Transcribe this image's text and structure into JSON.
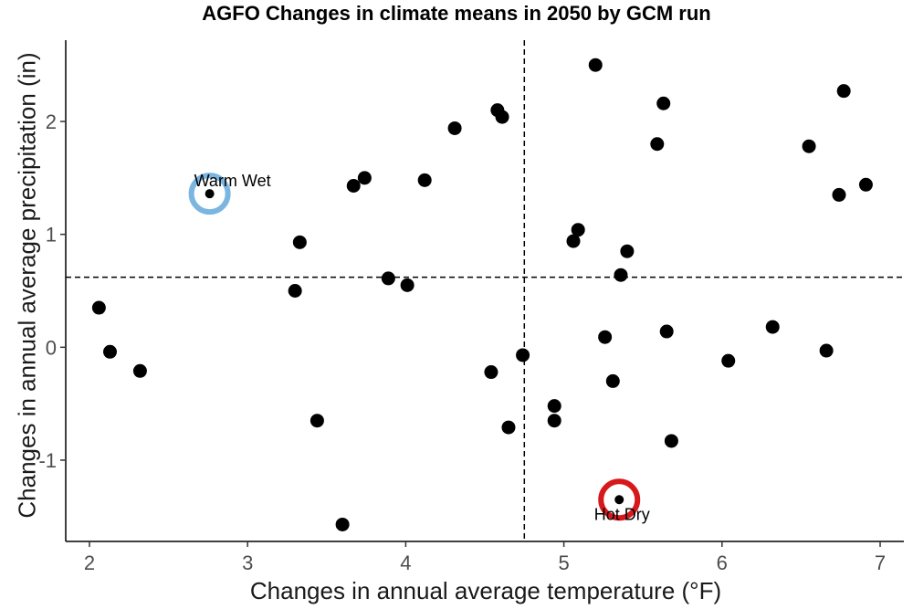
{
  "chart_data": {
    "type": "scatter",
    "title": "AGFO Changes in climate means in 2050 by GCM run",
    "xlabel": "Changes in annual average temperature (°F)",
    "ylabel": "Changes in annual average precipitation (in)",
    "xlim": [
      1.85,
      7.15
    ],
    "ylim": [
      -1.72,
      2.72
    ],
    "xticks": [
      2,
      3,
      4,
      5,
      6,
      7
    ],
    "yticks": [
      -1,
      0,
      1,
      2
    ],
    "grid": false,
    "reference_lines": {
      "x": 4.75,
      "y": 0.62
    },
    "points": [
      {
        "x": 2.06,
        "y": 0.35
      },
      {
        "x": 2.13,
        "y": -0.04
      },
      {
        "x": 2.32,
        "y": -0.21
      },
      {
        "x": 2.76,
        "y": 1.36
      },
      {
        "x": 3.3,
        "y": 0.5
      },
      {
        "x": 3.33,
        "y": 0.93
      },
      {
        "x": 3.44,
        "y": -0.65
      },
      {
        "x": 3.6,
        "y": -1.57
      },
      {
        "x": 3.67,
        "y": 1.43
      },
      {
        "x": 3.74,
        "y": 1.5
      },
      {
        "x": 3.89,
        "y": 0.61
      },
      {
        "x": 4.01,
        "y": 0.55
      },
      {
        "x": 4.12,
        "y": 1.48
      },
      {
        "x": 4.31,
        "y": 1.94
      },
      {
        "x": 4.54,
        "y": -0.22
      },
      {
        "x": 4.58,
        "y": 2.1
      },
      {
        "x": 4.61,
        "y": 2.04
      },
      {
        "x": 4.65,
        "y": -0.71
      },
      {
        "x": 4.74,
        "y": -0.07
      },
      {
        "x": 4.94,
        "y": -0.52
      },
      {
        "x": 4.94,
        "y": -0.65
      },
      {
        "x": 5.06,
        "y": 0.94
      },
      {
        "x": 5.09,
        "y": 1.04
      },
      {
        "x": 5.2,
        "y": 2.5
      },
      {
        "x": 5.26,
        "y": 0.09
      },
      {
        "x": 5.31,
        "y": -0.3
      },
      {
        "x": 5.35,
        "y": -1.35
      },
      {
        "x": 5.36,
        "y": 0.64
      },
      {
        "x": 5.4,
        "y": 0.85
      },
      {
        "x": 5.59,
        "y": 1.8
      },
      {
        "x": 5.63,
        "y": 2.16
      },
      {
        "x": 5.65,
        "y": 0.14
      },
      {
        "x": 5.68,
        "y": -0.83
      },
      {
        "x": 6.04,
        "y": -0.12
      },
      {
        "x": 6.32,
        "y": 0.18
      },
      {
        "x": 6.55,
        "y": 1.78
      },
      {
        "x": 6.66,
        "y": -0.03
      },
      {
        "x": 6.74,
        "y": 1.35
      },
      {
        "x": 6.77,
        "y": 2.27
      },
      {
        "x": 6.91,
        "y": 1.44
      }
    ],
    "highlights": [
      {
        "label": "Warm Wet",
        "x": 2.76,
        "y": 1.36,
        "color": "#7ab6e0"
      },
      {
        "label": "Hot Dry",
        "x": 5.35,
        "y": -1.35,
        "color": "#d7191c"
      }
    ],
    "colors": {
      "point": "#000000",
      "axis": "#000000",
      "tick_label": "#4d4d4d"
    }
  }
}
